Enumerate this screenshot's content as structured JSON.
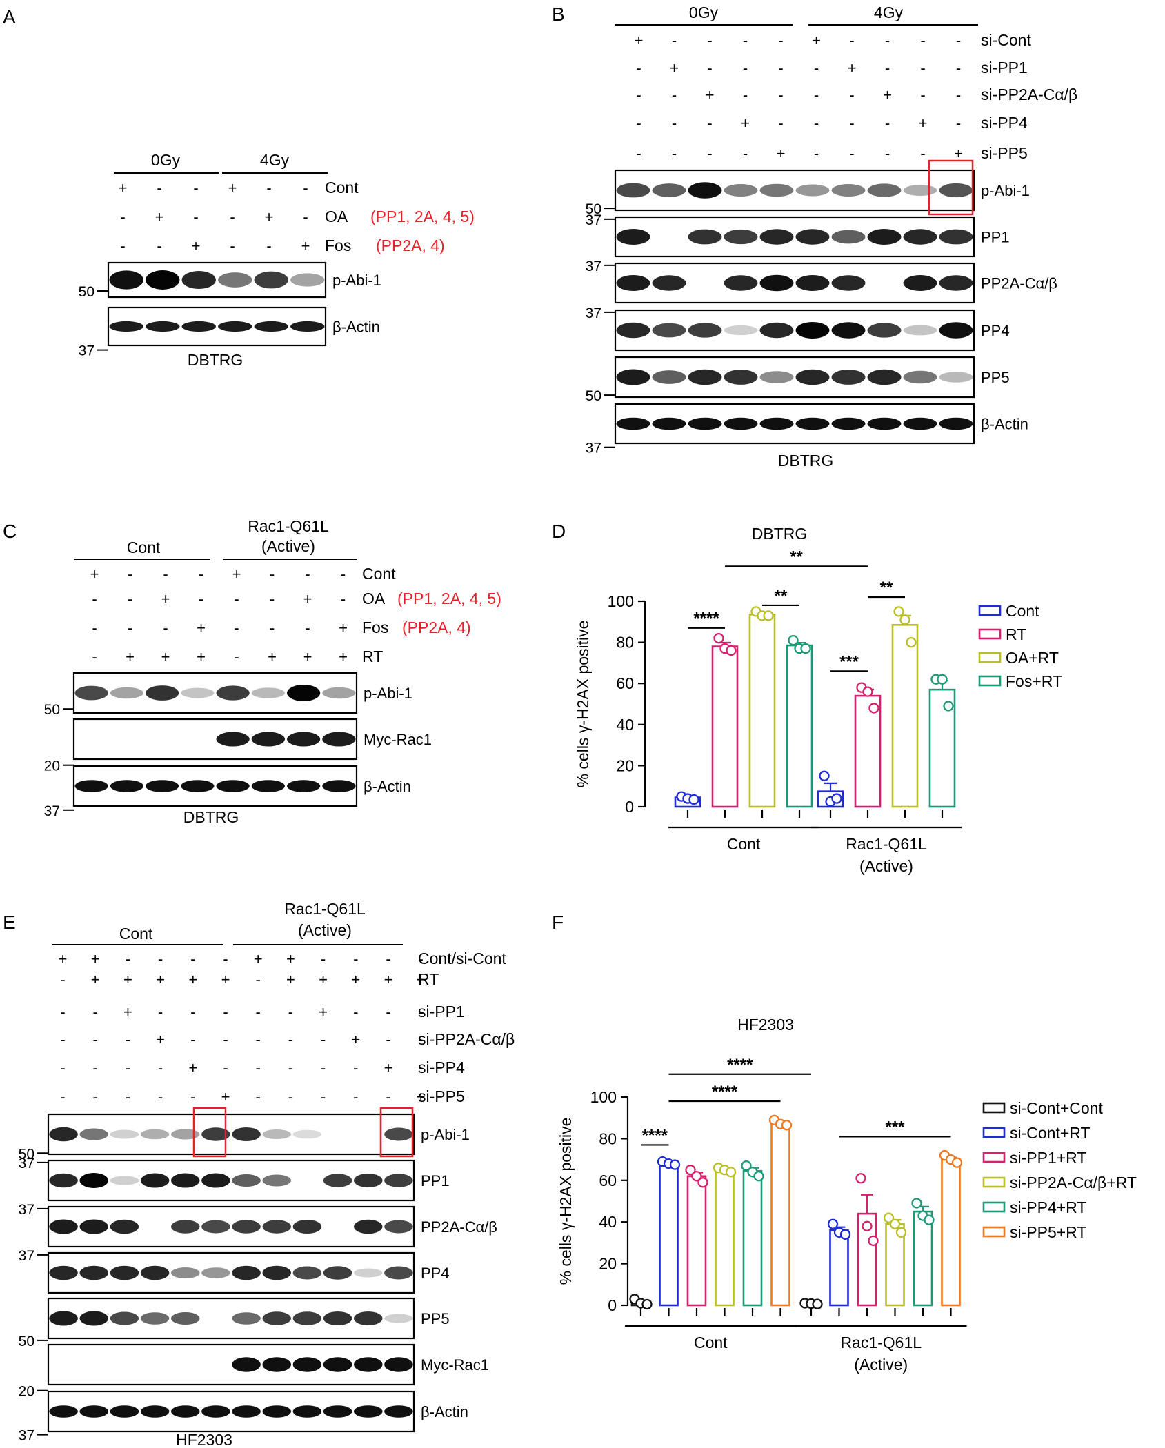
{
  "panels": {
    "A": {
      "letter": "A",
      "groups": [
        "0Gy",
        "4Gy"
      ],
      "rows": [
        {
          "label": "Cont",
          "red": "",
          "signs": [
            "+",
            "-",
            "-",
            "+",
            "-",
            "-"
          ]
        },
        {
          "label": "OA",
          "red": "(PP1, 2A, 4, 5)",
          "signs": [
            "-",
            "+",
            "-",
            "-",
            "+",
            "-"
          ]
        },
        {
          "label": "Fos",
          "red": "(PP2A, 4)",
          "signs": [
            "-",
            "-",
            "+",
            "-",
            "-",
            "+"
          ]
        }
      ],
      "blots": [
        {
          "label": "p-Abi-1",
          "marker": "50"
        },
        {
          "label": "β-Actin",
          "marker": "37"
        }
      ],
      "cell_line": "DBTRG"
    },
    "B": {
      "letter": "B",
      "groups": [
        "0Gy",
        "4Gy"
      ],
      "rows": [
        {
          "label": "si-Cont",
          "signs": [
            "+",
            "-",
            "-",
            "-",
            "-",
            "+",
            "-",
            "-",
            "-",
            "-"
          ]
        },
        {
          "label": "si-PP1",
          "signs": [
            "-",
            "+",
            "-",
            "-",
            "-",
            "-",
            "+",
            "-",
            "-",
            "-"
          ]
        },
        {
          "label": "si-PP2A-Cα/β",
          "signs": [
            "-",
            "-",
            "+",
            "-",
            "-",
            "-",
            "-",
            "+",
            "-",
            "-"
          ]
        },
        {
          "label": "si-PP4",
          "signs": [
            "-",
            "-",
            "-",
            "+",
            "-",
            "-",
            "-",
            "-",
            "+",
            "-"
          ]
        },
        {
          "label": "si-PP5",
          "signs": [
            "-",
            "-",
            "-",
            "-",
            "+",
            "-",
            "-",
            "-",
            "-",
            "+"
          ]
        }
      ],
      "blots": [
        {
          "label": "p-Abi-1",
          "marker": "50"
        },
        {
          "label": "PP1",
          "marker": "37"
        },
        {
          "label": "PP2A-Cα/β",
          "marker": "37"
        },
        {
          "label": "PP4",
          "marker": "37"
        },
        {
          "label": "PP5",
          "marker": "50"
        },
        {
          "label": "β-Actin",
          "marker": "37"
        }
      ],
      "cell_line": "DBTRG"
    },
    "C": {
      "letter": "C",
      "groups": [
        "Cont",
        "Rac1-Q61L",
        "(Active)"
      ],
      "rows": [
        {
          "label": "Cont",
          "red": "",
          "signs": [
            "+",
            "-",
            "-",
            "-",
            "+",
            "-",
            "-",
            "-"
          ]
        },
        {
          "label": "OA",
          "red": "(PP1, 2A, 4, 5)",
          "signs": [
            "-",
            "-",
            "+",
            "-",
            "-",
            "-",
            "+",
            "-"
          ]
        },
        {
          "label": "Fos",
          "red": "(PP2A, 4)",
          "signs": [
            "-",
            "-",
            "-",
            "+",
            "-",
            "-",
            "-",
            "+"
          ]
        },
        {
          "label": "RT",
          "red": "",
          "signs": [
            "-",
            "+",
            "+",
            "+",
            "-",
            "+",
            "+",
            "+"
          ]
        }
      ],
      "blots": [
        {
          "label": "p-Abi-1",
          "marker": "50"
        },
        {
          "label": "Myc-Rac1",
          "marker": "20"
        },
        {
          "label": "β-Actin",
          "marker": "37"
        }
      ],
      "cell_line": "DBTRG"
    },
    "D": {
      "letter": "D",
      "chart_data": {
        "type": "bar",
        "title": "DBTRG",
        "ylabel": "% cells γ-H2AX positive",
        "ylim": [
          0,
          100
        ],
        "yticks": [
          "0",
          "20",
          "40",
          "60",
          "80",
          "100"
        ],
        "groups": [
          "Cont",
          "Rac1-Q61L",
          "(Active)"
        ],
        "series": [
          {
            "name": "Cont",
            "color": "#1f2bd6",
            "values": [
              4.5,
              7.5
            ],
            "points": [
              [
                5,
                4,
                3.5
              ],
              [
                15,
                2.5,
                4
              ]
            ]
          },
          {
            "name": "RT",
            "color": "#d6206d",
            "values": [
              78,
              54
            ],
            "points": [
              [
                82,
                77,
                76
              ],
              [
                58,
                56,
                48
              ]
            ]
          },
          {
            "name": "OA+RT",
            "color": "#b9bf24",
            "values": [
              93.5,
              88.5
            ],
            "points": [
              [
                95,
                93,
                93
              ],
              [
                95,
                91,
                80
              ]
            ]
          },
          {
            "name": "Fos+RT",
            "color": "#1c9a78",
            "values": [
              78.5,
              57
            ],
            "points": [
              [
                81,
                77,
                77
              ],
              [
                62,
                62,
                49
              ]
            ]
          }
        ],
        "significance": [
          "****",
          "**",
          "**",
          "***",
          "**"
        ],
        "legend": "right"
      }
    },
    "E": {
      "letter": "E",
      "groups": [
        "Cont",
        "Rac1-Q61L",
        "(Active)"
      ],
      "rows": [
        {
          "label": "Cont/si-Cont",
          "signs": [
            "+",
            "+",
            "-",
            "-",
            "-",
            "-",
            "+",
            "+",
            "-",
            "-",
            "-",
            "-"
          ]
        },
        {
          "label": "RT",
          "signs": [
            "-",
            "+",
            "+",
            "+",
            "+",
            "+",
            "-",
            "+",
            "+",
            "+",
            "+",
            "+"
          ]
        },
        {
          "label": "si-PP1",
          "signs": [
            "-",
            "-",
            "+",
            "-",
            "-",
            "-",
            "-",
            "-",
            "+",
            "-",
            "-",
            "-"
          ]
        },
        {
          "label": "si-PP2A-Cα/β",
          "signs": [
            "-",
            "-",
            "-",
            "+",
            "-",
            "-",
            "-",
            "-",
            "-",
            "+",
            "-",
            "-"
          ]
        },
        {
          "label": "si-PP4",
          "signs": [
            "-",
            "-",
            "-",
            "-",
            "+",
            "-",
            "-",
            "-",
            "-",
            "-",
            "+",
            "-"
          ]
        },
        {
          "label": "si-PP5",
          "signs": [
            "-",
            "-",
            "-",
            "-",
            "-",
            "+",
            "-",
            "-",
            "-",
            "-",
            "-",
            "+"
          ]
        }
      ],
      "blots": [
        {
          "label": "p-Abi-1",
          "marker": "50"
        },
        {
          "label": "PP1",
          "marker": "37"
        },
        {
          "label": "PP2A-Cα/β",
          "marker": "37"
        },
        {
          "label": "PP4",
          "marker": "37"
        },
        {
          "label": "PP5",
          "marker": "50"
        },
        {
          "label": "Myc-Rac1",
          "marker": "20"
        },
        {
          "label": "β-Actin",
          "marker": "37"
        }
      ],
      "cell_line": "HF2303"
    },
    "F": {
      "letter": "F",
      "chart_data": {
        "type": "bar",
        "title": "HF2303",
        "ylabel": "% cells γ-H2AX positive",
        "ylim": [
          0,
          100
        ],
        "yticks": [
          "0",
          "20",
          "40",
          "60",
          "80",
          "100"
        ],
        "groups": [
          "Cont",
          "Rac1-Q61L",
          "(Active)"
        ],
        "series": [
          {
            "name": "si-Cont+Cont",
            "color": "#111111",
            "values": [
              1.5,
              0.8
            ],
            "points": [
              [
                3,
                1,
                0.5
              ],
              [
                1,
                0.8,
                0.6
              ]
            ]
          },
          {
            "name": "si-Cont+RT",
            "color": "#1f2bd6",
            "values": [
              68,
              36
            ],
            "points": [
              [
                69,
                68,
                67.5
              ],
              [
                39,
                35,
                34
              ]
            ]
          },
          {
            "name": "si-PP1+RT",
            "color": "#d6206d",
            "values": [
              62,
              44
            ],
            "points": [
              [
                65,
                62,
                59
              ],
              [
                61,
                38,
                31
              ]
            ]
          },
          {
            "name": "si-PP2A-Cα/β+RT",
            "color": "#b9bf24",
            "values": [
              65,
              39
            ],
            "points": [
              [
                66,
                65,
                64
              ],
              [
                42,
                39,
                35
              ]
            ]
          },
          {
            "name": "si-PP4+RT",
            "color": "#1c9a78",
            "values": [
              64.5,
              45
            ],
            "points": [
              [
                67,
                64,
                62
              ],
              [
                49,
                43,
                41
              ]
            ]
          },
          {
            "name": "si-PP5+RT",
            "color": "#f07820",
            "values": [
              87.5,
              70
            ],
            "points": [
              [
                89,
                87,
                86.5
              ],
              [
                72,
                70,
                68.5
              ]
            ]
          }
        ],
        "significance": [
          "****",
          "****",
          "****",
          "***"
        ],
        "legend": "right"
      }
    }
  }
}
